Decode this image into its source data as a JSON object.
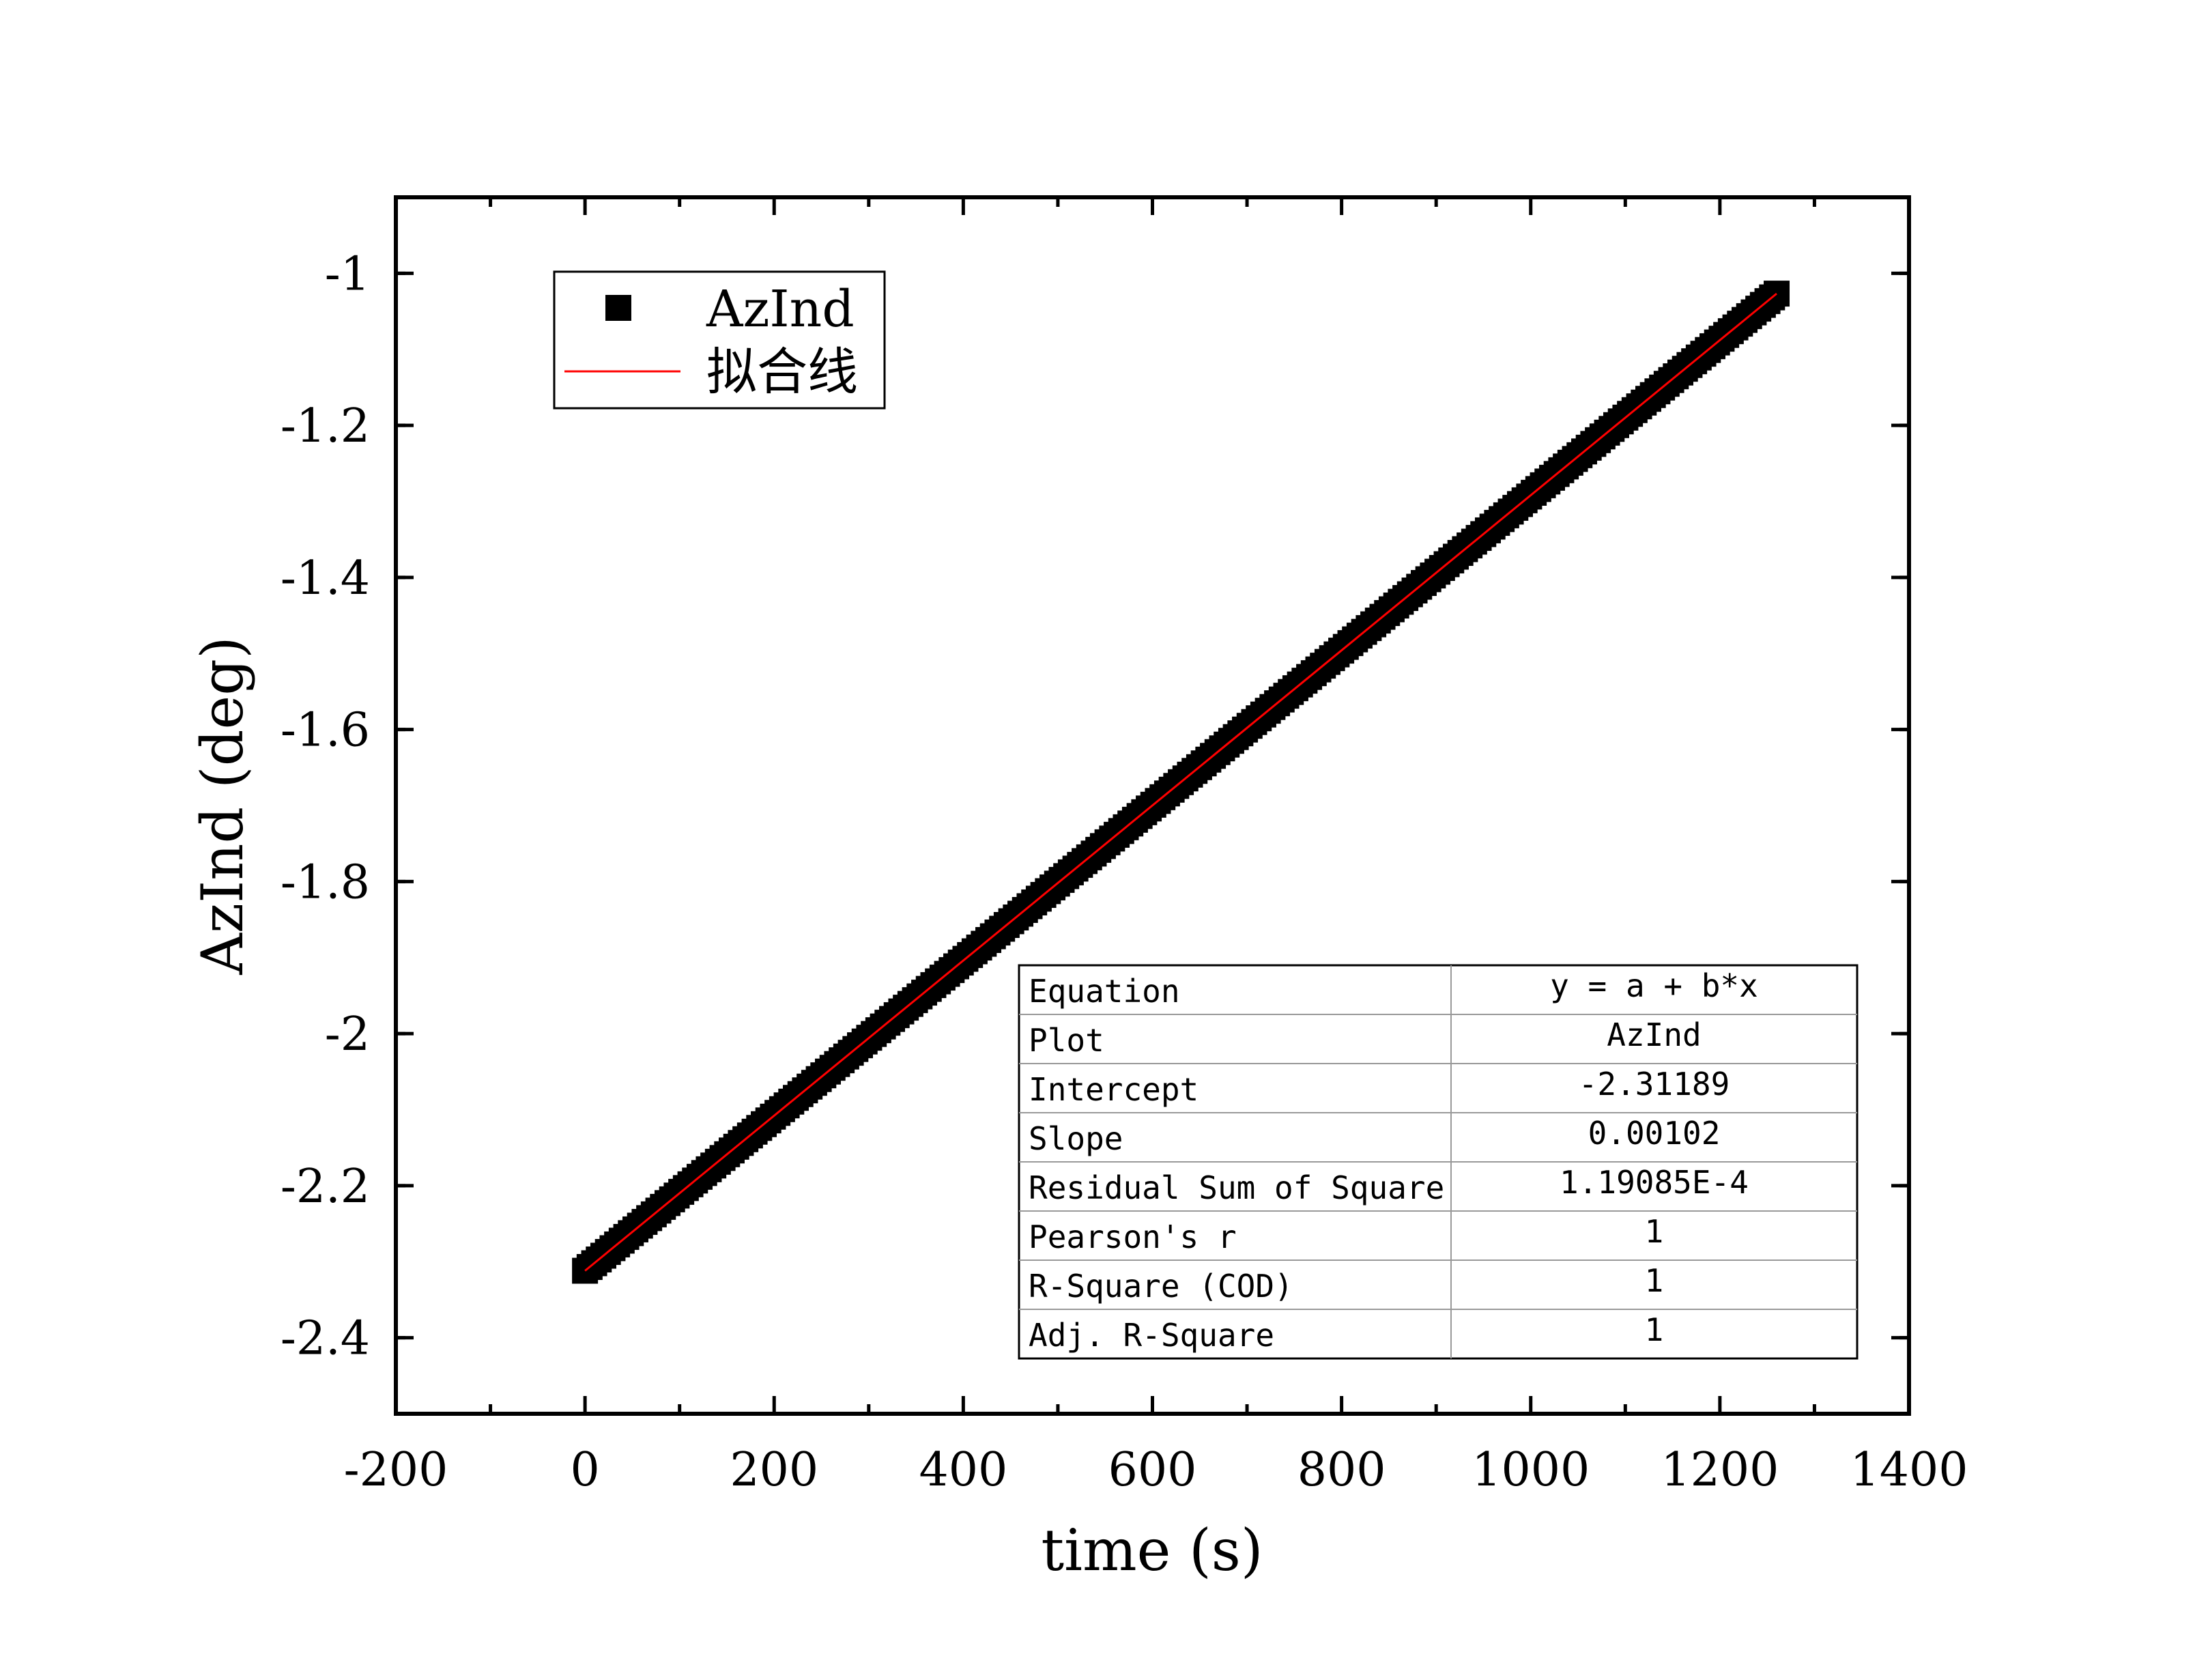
{
  "chart_data": {
    "type": "scatter",
    "title": "",
    "xlabel": "time (s)",
    "ylabel": "AzInd (deg)",
    "xlim": [
      -200,
      1400
    ],
    "ylim": [
      -2.5,
      -0.9
    ],
    "x_ticks": [
      -200,
      0,
      200,
      400,
      600,
      800,
      1000,
      1200,
      1400
    ],
    "x_tick_labels": [
      "-200",
      "0",
      "200",
      "400",
      "600",
      "800",
      "1000",
      "1200",
      "1400"
    ],
    "y_ticks": [
      -1,
      -1.2,
      -1.4,
      -1.6,
      -1.8,
      -2,
      -2.2,
      -2.4
    ],
    "y_tick_labels": [
      "-1",
      "-1.2",
      "-1.4",
      "-1.6",
      "-1.8",
      "-2",
      "-2.2",
      "-2.4"
    ],
    "grid": false,
    "legend_position": "top-left",
    "series": [
      {
        "name": "AzInd",
        "kind": "scatter",
        "marker": "square",
        "color": "#000000",
        "x": [
          0,
          100,
          200,
          300,
          400,
          500,
          600,
          700,
          800,
          900,
          1000,
          1100,
          1200,
          1260
        ],
        "y": [
          -2.31189,
          -2.20989,
          -2.10789,
          -2.00589,
          -1.90389,
          -1.80189,
          -1.69989,
          -1.59789,
          -1.49589,
          -1.39389,
          -1.29189,
          -1.18989,
          -1.08789,
          -1.02669
        ]
      },
      {
        "name": "拟合线",
        "kind": "line",
        "color": "#ff0000",
        "x": [
          0,
          1260
        ],
        "y": [
          -2.31189,
          -1.02669
        ]
      }
    ],
    "fit_table": {
      "rows": [
        {
          "label": "Equation",
          "value": "y = a + b*x"
        },
        {
          "label": "Plot",
          "value": "AzInd"
        },
        {
          "label": "Intercept",
          "value": "-2.31189"
        },
        {
          "label": "Slope",
          "value": "0.00102"
        },
        {
          "label": "Residual Sum of Square",
          "value": "1.19085E-4"
        },
        {
          "label": "Pearson's r",
          "value": "1"
        },
        {
          "label": "R-Square (COD)",
          "value": "1"
        },
        {
          "label": "Adj. R-Square",
          "value": "1"
        }
      ]
    }
  }
}
